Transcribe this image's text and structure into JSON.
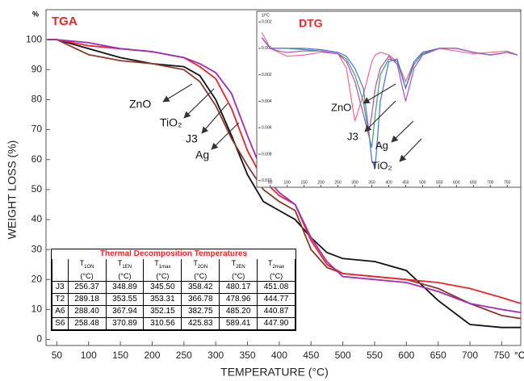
{
  "chart_data": [
    {
      "type": "line",
      "title": "TGA",
      "ylabel": "WEIGHT LOSS (%)",
      "xlabel": "TEMPERATURE (°C)",
      "y_unit": "%",
      "x_unit": "°C",
      "x": [
        35,
        50,
        100,
        150,
        200,
        250,
        275,
        300,
        325,
        350,
        375,
        400,
        425,
        450,
        475,
        500,
        550,
        600,
        650,
        700,
        750,
        780
      ],
      "series": [
        {
          "color": "#111111",
          "values": [
            100,
            100,
            97,
            94,
            92,
            91,
            88,
            80,
            68,
            55,
            46,
            43,
            40,
            34,
            29,
            27,
            26,
            23,
            13,
            5,
            4,
            4
          ]
        },
        {
          "color": "#8b3a2a",
          "values": [
            100,
            100,
            95,
            93,
            92,
            90,
            86,
            78,
            67,
            58,
            50,
            46,
            43,
            30,
            24,
            22,
            21,
            20,
            17,
            12,
            8,
            7
          ]
        },
        {
          "color": "#e8262b",
          "values": [
            100,
            100,
            98,
            97,
            96,
            94,
            91,
            87,
            77,
            63,
            53,
            48,
            45,
            33,
            25,
            22,
            21,
            20,
            19,
            17,
            14,
            12
          ]
        },
        {
          "color": "#a12db5",
          "values": [
            100,
            100,
            99,
            97,
            96,
            94,
            92,
            89,
            82,
            68,
            55,
            49,
            45,
            34,
            26,
            21,
            20,
            19,
            16,
            12,
            10,
            9
          ]
        }
      ],
      "annotations": [
        "ZnO",
        "TiO₂",
        "J3",
        "Ag"
      ],
      "xlim": [
        33,
        780
      ],
      "ylim": [
        -2,
        110
      ],
      "xticks": [
        50,
        100,
        150,
        200,
        250,
        300,
        350,
        400,
        450,
        500,
        550,
        600,
        650,
        700,
        750
      ],
      "yticks": [
        0,
        10,
        20,
        30,
        40,
        50,
        60,
        70,
        80,
        90,
        100
      ],
      "grid": false
    },
    {
      "type": "line",
      "title": "DTG",
      "y_unit": "1/°C",
      "x": [
        25,
        50,
        75,
        100,
        150,
        200,
        250,
        275,
        300,
        325,
        340,
        350,
        360,
        375,
        400,
        425,
        450,
        475,
        500,
        550,
        600,
        650,
        700,
        750,
        780
      ],
      "series": [
        {
          "color": "#f06a8a",
          "values": [
            0.0012,
            0,
            -0.0003,
            -0.0006,
            -0.0005,
            -0.0003,
            -0.0004,
            -0.0015,
            -0.0055,
            -0.0035,
            -0.002,
            -0.001,
            -0.0005,
            -0.0003,
            -0.0005,
            -0.001,
            -0.0025,
            -0.001,
            -0.0003,
            0,
            -0.0002,
            -0.0004,
            -0.0003,
            -0.0002,
            -0.0005
          ]
        },
        {
          "color": "#3aa35a",
          "values": [
            0.0008,
            0,
            0,
            0,
            -0.0001,
            -0.0002,
            -0.0004,
            -0.0008,
            -0.002,
            -0.004,
            -0.0065,
            -0.0075,
            -0.005,
            -0.002,
            -0.0008,
            -0.001,
            -0.003,
            -0.0012,
            -0.0004,
            0,
            0,
            -0.0003,
            -0.0005,
            -0.0003,
            -0.0005
          ]
        },
        {
          "color": "#4a6fe0",
          "values": [
            0.0008,
            0,
            0,
            0,
            0,
            -0.0001,
            -0.0003,
            -0.0006,
            -0.0015,
            -0.003,
            -0.006,
            -0.0085,
            -0.009,
            -0.004,
            -0.001,
            -0.0008,
            -0.003,
            -0.001,
            -0.0003,
            0,
            0,
            -0.0003,
            -0.0005,
            -0.0003,
            -0.0005
          ]
        },
        {
          "color": "#b04cc0",
          "values": [
            0.0008,
            0,
            -0.0002,
            -0.0003,
            -0.0002,
            -0.0002,
            -0.0004,
            -0.001,
            -0.0025,
            -0.005,
            -0.0065,
            -0.005,
            -0.003,
            -0.0015,
            -0.0006,
            -0.0012,
            -0.004,
            -0.0015,
            -0.0005,
            0,
            0,
            -0.0003,
            -0.0005,
            -0.0003,
            -0.0005
          ]
        }
      ],
      "annotations": [
        "ZnO",
        "J3",
        "Ag",
        "TiO₂"
      ],
      "xlim": [
        15,
        790
      ],
      "ylim": [
        -0.0105,
        0.0028
      ],
      "xticks": [
        50,
        100,
        150,
        200,
        250,
        300,
        350,
        400,
        450,
        500,
        550,
        600,
        650,
        700,
        750
      ],
      "yticks": [
        0.002,
        {
          "value": 0,
          "label": "0.000"
        },
        {
          "value": -0.002,
          "label": "0.002"
        },
        {
          "value": -0.004,
          "label": "0.004"
        },
        {
          "value": -0.006,
          "label": "0.006"
        },
        {
          "value": -0.008,
          "label": "0.008"
        },
        {
          "value": -0.01,
          "label": "0.010"
        }
      ],
      "grid": false
    }
  ],
  "table": {
    "title": "Thermal Decomposition Temperatures",
    "headers": [
      {
        "symbol": "T",
        "sub": "1ON",
        "unit": "(°C)"
      },
      {
        "symbol": "T",
        "sub": "1EN",
        "unit": "(°C)"
      },
      {
        "symbol": "T",
        "sub": "1max",
        "unit": "(°C)"
      },
      {
        "symbol": "T",
        "sub": "2ON",
        "unit": "(°C)"
      },
      {
        "symbol": "T",
        "sub": "2EN",
        "unit": "(°C)"
      },
      {
        "symbol": "T",
        "sub": "2max",
        "unit": "(°C)"
      }
    ],
    "rows": [
      [
        "J3",
        "256.37",
        "348.89",
        "345.50",
        "358.42",
        "480.17",
        "451.08"
      ],
      [
        "T2",
        "289.18",
        "353.55",
        "353.31",
        "366.78",
        "478.96",
        "444.77"
      ],
      [
        "A6",
        "288.40",
        "367.94",
        "352.15",
        "382.75",
        "485.20",
        "440.87"
      ],
      [
        "S6",
        "258.48",
        "370.89",
        "310.56",
        "425.83",
        "589.41",
        "447.90"
      ]
    ]
  }
}
